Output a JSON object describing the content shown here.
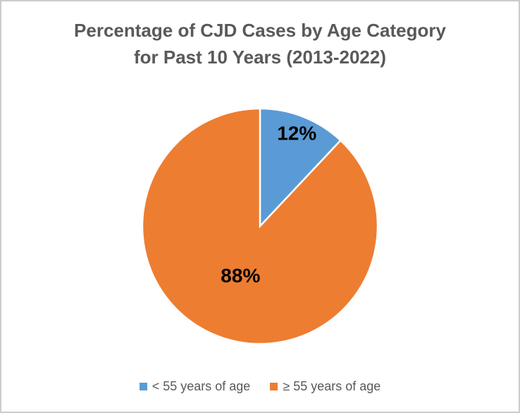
{
  "chart_data": {
    "type": "pie",
    "title": "Percentage of CJD Cases by Age Category for Past 10 Years (2013-2022)",
    "title_lines": [
      "Percentage of CJD Cases by Age Category",
      "for Past 10 Years (2013-2022)"
    ],
    "slices": [
      {
        "label": "< 55 years of age",
        "value": 12,
        "display": "12%",
        "color": "#5B9BD5",
        "label_radius_fraction": 0.85
      },
      {
        "label": "≥ 55 years of age",
        "value": 88,
        "display": "88%",
        "color": "#ED7D31",
        "label_radius_fraction": 0.45
      }
    ],
    "start_angle_deg": 0,
    "direction": "clockwise",
    "legend_position": "bottom",
    "title_color": "#595959",
    "legend_text_color": "#595959",
    "data_label_color": "#000000",
    "slice_border_color": "#FFFFFF"
  }
}
